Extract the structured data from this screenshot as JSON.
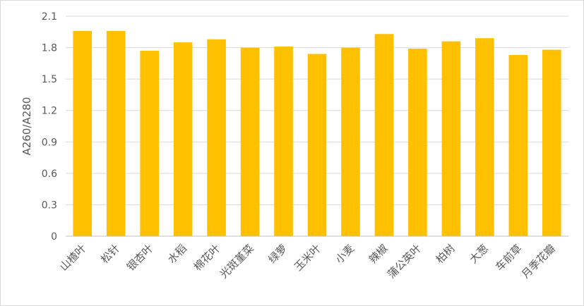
{
  "chart_data": {
    "type": "bar",
    "title": "",
    "xlabel": "",
    "ylabel": "A260/A280",
    "ylim": [
      0,
      2.1
    ],
    "yticks": [
      "0",
      "0.3",
      "0.6",
      "0.9",
      "1.2",
      "1.5",
      "1.8",
      "2.1"
    ],
    "grid": true,
    "legend": "none",
    "bar_color": "#FFC000",
    "categories": [
      "山楂叶",
      "松针",
      "银杏叶",
      "水稻",
      "棉花叶",
      "光斑堇菜",
      "绿萝",
      "玉米叶",
      "小麦",
      "辣椒",
      "蒲公英叶",
      "柏树",
      "大葱",
      "车前草",
      "月季花瓣"
    ],
    "values": [
      1.96,
      1.96,
      1.77,
      1.85,
      1.88,
      1.8,
      1.81,
      1.74,
      1.8,
      1.93,
      1.79,
      1.86,
      1.89,
      1.73,
      1.78
    ]
  }
}
